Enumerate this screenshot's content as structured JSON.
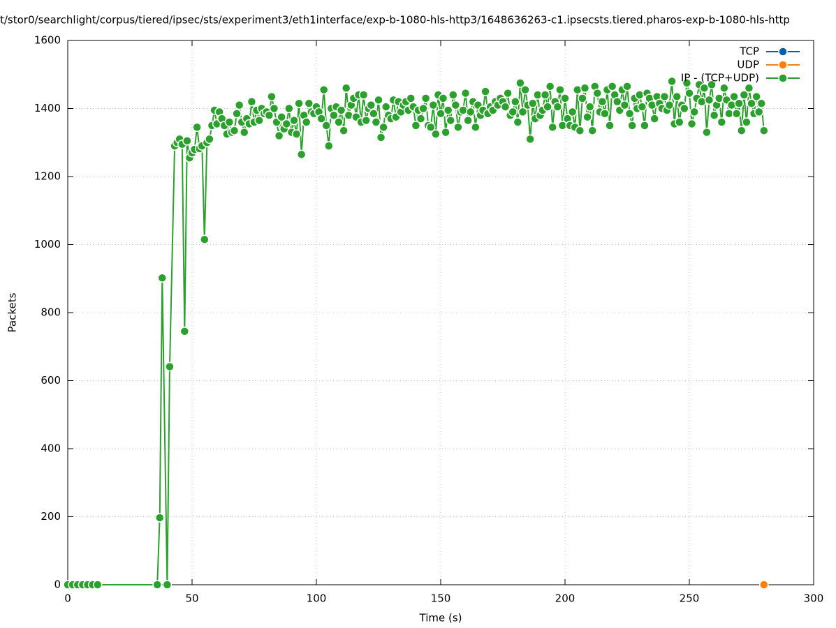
{
  "chart_data": {
    "type": "line",
    "title": "t/stor0/searchlight/corpus/tiered/ipsec/sts/experiment3/eth1interface/exp-b-1080-hls-http3/1648636263-c1.ipsecsts.tiered.pharos-exp-b-1080-hls-http",
    "x_label": "Time (s)",
    "y_label": "Packets",
    "xlim": [
      0,
      300
    ],
    "xticks": [
      0,
      50,
      100,
      150,
      200,
      250,
      300
    ],
    "ylim": [
      0,
      1600
    ],
    "yticks": [
      0,
      200,
      400,
      600,
      800,
      1000,
      1200,
      1400,
      1600
    ],
    "grid": true,
    "legend": "top-right",
    "series": [
      {
        "name": "TCP",
        "color": "#0060ad",
        "x": [],
        "values": []
      },
      {
        "name": "UDP",
        "color": "#ff7f0e",
        "x": [
          280
        ],
        "values": [
          0
        ]
      },
      {
        "name": "IP - (TCP+UDP)",
        "color": "#2ca02c",
        "x": [
          0,
          2,
          4,
          6,
          8,
          10,
          12,
          36,
          37,
          38,
          40,
          41,
          43,
          44,
          45,
          46,
          47,
          48,
          49,
          50,
          51,
          52,
          53,
          54,
          55,
          56,
          57,
          58,
          59,
          60,
          61,
          62,
          63,
          64,
          65,
          66,
          67,
          68,
          69,
          70,
          71,
          72,
          73,
          74,
          75,
          76,
          77,
          78,
          79,
          80,
          81,
          82,
          83,
          84,
          85,
          86,
          87,
          88,
          89,
          90,
          91,
          92,
          93,
          94,
          95,
          96,
          97,
          98,
          99,
          100,
          101,
          102,
          103,
          104,
          105,
          106,
          107,
          108,
          109,
          110,
          111,
          112,
          113,
          114,
          115,
          116,
          117,
          118,
          119,
          120,
          121,
          122,
          123,
          124,
          125,
          126,
          127,
          128,
          129,
          130,
          131,
          132,
          133,
          134,
          135,
          136,
          137,
          138,
          139,
          140,
          141,
          142,
          143,
          144,
          145,
          146,
          147,
          148,
          149,
          150,
          151,
          152,
          153,
          154,
          155,
          156,
          157,
          158,
          159,
          160,
          161,
          162,
          163,
          164,
          165,
          166,
          167,
          168,
          169,
          170,
          171,
          172,
          173,
          174,
          175,
          176,
          177,
          178,
          179,
          180,
          181,
          182,
          183,
          184,
          185,
          186,
          187,
          188,
          189,
          190,
          191,
          192,
          193,
          194,
          195,
          196,
          197,
          198,
          199,
          200,
          201,
          202,
          203,
          204,
          205,
          206,
          207,
          208,
          209,
          210,
          211,
          212,
          213,
          214,
          215,
          216,
          217,
          218,
          219,
          220,
          221,
          222,
          223,
          224,
          225,
          226,
          227,
          228,
          229,
          230,
          231,
          232,
          233,
          234,
          235,
          236,
          237,
          238,
          239,
          240,
          241,
          242,
          243,
          244,
          245,
          246,
          247,
          248,
          249,
          250,
          251,
          252,
          253,
          254,
          255,
          256,
          257,
          258,
          259,
          260,
          261,
          262,
          263,
          264,
          265,
          266,
          267,
          268,
          269,
          270,
          271,
          272,
          273,
          274,
          275,
          276,
          277,
          278,
          279,
          280
        ],
        "values": [
          0,
          0,
          0,
          0,
          0,
          0,
          0,
          0,
          197,
          902,
          0,
          641,
          1290,
          1300,
          1310,
          1295,
          745,
          1305,
          1255,
          1270,
          1280,
          1345,
          1282,
          1290,
          1015,
          1300,
          1310,
          1350,
          1395,
          1355,
          1390,
          1370,
          1350,
          1325,
          1360,
          1330,
          1335,
          1385,
          1410,
          1360,
          1330,
          1370,
          1355,
          1420,
          1360,
          1395,
          1365,
          1400,
          1385,
          1390,
          1380,
          1435,
          1400,
          1360,
          1320,
          1375,
          1340,
          1355,
          1400,
          1330,
          1365,
          1325,
          1415,
          1265,
          1380,
          1360,
          1415,
          1390,
          1385,
          1405,
          1390,
          1370,
          1455,
          1350,
          1290,
          1400,
          1380,
          1405,
          1360,
          1395,
          1335,
          1460,
          1380,
          1410,
          1430,
          1375,
          1440,
          1360,
          1440,
          1365,
          1400,
          1410,
          1385,
          1360,
          1425,
          1315,
          1345,
          1405,
          1380,
          1370,
          1425,
          1375,
          1420,
          1390,
          1410,
          1420,
          1395,
          1430,
          1405,
          1350,
          1395,
          1370,
          1400,
          1430,
          1350,
          1345,
          1410,
          1325,
          1440,
          1385,
          1430,
          1330,
          1395,
          1365,
          1440,
          1410,
          1345,
          1390,
          1395,
          1445,
          1365,
          1390,
          1420,
          1345,
          1410,
          1380,
          1395,
          1450,
          1385,
          1405,
          1395,
          1420,
          1410,
          1430,
          1420,
          1405,
          1445,
          1380,
          1390,
          1420,
          1360,
          1475,
          1390,
          1455,
          1410,
          1310,
          1415,
          1370,
          1440,
          1380,
          1395,
          1440,
          1405,
          1465,
          1345,
          1420,
          1405,
          1455,
          1350,
          1430,
          1370,
          1350,
          1390,
          1345,
          1455,
          1335,
          1430,
          1460,
          1375,
          1405,
          1335,
          1465,
          1445,
          1390,
          1420,
          1385,
          1455,
          1350,
          1465,
          1440,
          1420,
          1395,
          1455,
          1410,
          1465,
          1385,
          1350,
          1430,
          1400,
          1440,
          1405,
          1350,
          1445,
          1430,
          1410,
          1370,
          1435,
          1415,
          1400,
          1435,
          1395,
          1410,
          1480,
          1355,
          1435,
          1360,
          1410,
          1400,
          1475,
          1445,
          1355,
          1390,
          1430,
          1470,
          1420,
          1460,
          1330,
          1425,
          1470,
          1380,
          1410,
          1430,
          1360,
          1460,
          1425,
          1385,
          1410,
          1435,
          1385,
          1415,
          1335,
          1440,
          1360,
          1460,
          1415,
          1385,
          1435,
          1390,
          1415,
          1335
        ]
      }
    ]
  }
}
